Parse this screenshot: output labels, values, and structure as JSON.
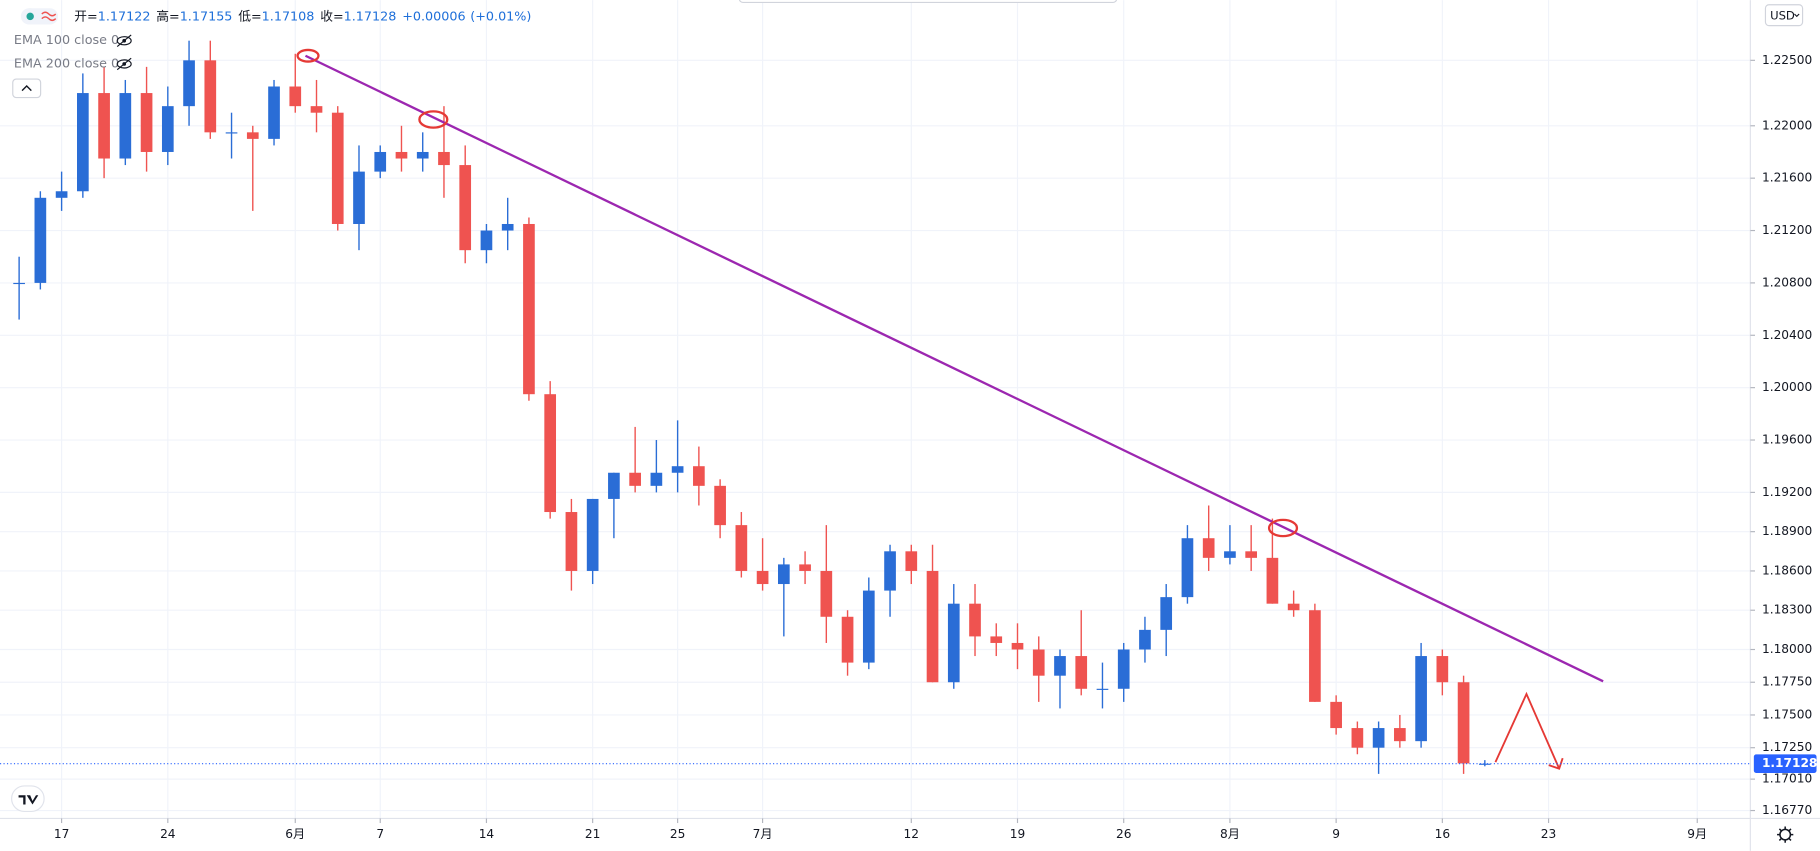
{
  "chart_data": {
    "type": "candlestick",
    "header": {
      "labels": [
        "开=",
        "高=",
        "低=",
        "收="
      ],
      "change": "+0.00006",
      "change_pct": "(+0.01%)"
    },
    "indicators": [
      "EMA 100 close 0",
      "EMA 200 close 0"
    ],
    "currency": "USD",
    "up_color": "#2a6dd6",
    "down_color": "#ef5350",
    "grid": true,
    "xlim": [
      -2.9,
      79.5
    ],
    "ylim": [
      1.1671,
      1.2296
    ],
    "xticks": [
      {
        "value": 0,
        "label": "17"
      },
      {
        "value": 5,
        "label": "24"
      },
      {
        "value": 11,
        "label": "6月"
      },
      {
        "value": 15,
        "label": "7"
      },
      {
        "value": 20,
        "label": "14"
      },
      {
        "value": 25,
        "label": "21"
      },
      {
        "value": 29,
        "label": "25"
      },
      {
        "value": 33,
        "label": "7月"
      },
      {
        "value": 40,
        "label": "12"
      },
      {
        "value": 45,
        "label": "19"
      },
      {
        "value": 50,
        "label": "26"
      },
      {
        "value": 55,
        "label": "8月"
      },
      {
        "value": 60,
        "label": "9"
      },
      {
        "value": 65,
        "label": "16"
      },
      {
        "value": 70,
        "label": "23"
      },
      {
        "value": 77,
        "label": "9月"
      }
    ],
    "yticks": [
      {
        "value": 1.225,
        "label": "1.22500"
      },
      {
        "value": 1.22,
        "label": "1.22000"
      },
      {
        "value": 1.216,
        "label": "1.21600"
      },
      {
        "value": 1.212,
        "label": "1.21200"
      },
      {
        "value": 1.208,
        "label": "1.20800"
      },
      {
        "value": 1.204,
        "label": "1.20400"
      },
      {
        "value": 1.2,
        "label": "1.20000"
      },
      {
        "value": 1.196,
        "label": "1.19600"
      },
      {
        "value": 1.192,
        "label": "1.19200"
      },
      {
        "value": 1.189,
        "label": "1.18900"
      },
      {
        "value": 1.186,
        "label": "1.18600"
      },
      {
        "value": 1.183,
        "label": "1.18300"
      },
      {
        "value": 1.18,
        "label": "1.18000"
      },
      {
        "value": 1.1775,
        "label": "1.17750"
      },
      {
        "value": 1.175,
        "label": "1.17500"
      },
      {
        "value": 1.1725,
        "label": "1.17250"
      },
      {
        "value": 1.1701,
        "label": "1.17010"
      },
      {
        "value": 1.1677,
        "label": "1.16770"
      }
    ],
    "candles": {
      "x": [
        -2,
        -1,
        0,
        1,
        2,
        3,
        4,
        5,
        6,
        7,
        8,
        9,
        10,
        11,
        12,
        13,
        14,
        15,
        16,
        17,
        18,
        19,
        20,
        21,
        22,
        23,
        24,
        25,
        26,
        27,
        28,
        29,
        30,
        31,
        32,
        33,
        34,
        35,
        36,
        37,
        38,
        39,
        40,
        41,
        42,
        43,
        44,
        45,
        46,
        47,
        48,
        49,
        50,
        51,
        52,
        53,
        54,
        55,
        56,
        57,
        58,
        59,
        60,
        61,
        62,
        63,
        64,
        65,
        66,
        67
      ],
      "open": [
        1.208,
        1.208,
        1.2145,
        1.215,
        1.2225,
        1.2175,
        1.2225,
        1.218,
        1.2215,
        1.225,
        1.2195,
        1.2195,
        1.219,
        1.223,
        1.2215,
        1.221,
        1.2125,
        1.2165,
        1.218,
        1.2175,
        1.218,
        1.217,
        1.2105,
        1.212,
        1.2125,
        1.1995,
        1.1905,
        1.186,
        1.1915,
        1.1935,
        1.1925,
        1.1935,
        1.194,
        1.1925,
        1.1895,
        1.186,
        1.185,
        1.1865,
        1.186,
        1.1825,
        1.179,
        1.1845,
        1.1875,
        1.186,
        1.1775,
        1.1835,
        1.181,
        1.1805,
        1.18,
        1.178,
        1.1795,
        1.177,
        1.177,
        1.18,
        1.1815,
        1.184,
        1.1885,
        1.187,
        1.1875,
        1.187,
        1.1835,
        1.183,
        1.176,
        1.174,
        1.1725,
        1.174,
        1.173,
        1.1795,
        1.1775,
        1.17122
      ],
      "high": [
        1.21,
        1.215,
        1.2165,
        1.224,
        1.2245,
        1.2235,
        1.2245,
        1.223,
        1.2265,
        1.2265,
        1.221,
        1.22,
        1.2235,
        1.2255,
        1.2235,
        1.2215,
        1.2185,
        1.2185,
        1.22,
        1.2195,
        1.2215,
        1.2185,
        1.2125,
        1.2145,
        1.213,
        1.2005,
        1.1915,
        1.1915,
        1.1935,
        1.197,
        1.196,
        1.1975,
        1.1955,
        1.193,
        1.1905,
        1.1885,
        1.187,
        1.1875,
        1.1895,
        1.183,
        1.1855,
        1.188,
        1.188,
        1.188,
        1.185,
        1.185,
        1.182,
        1.182,
        1.181,
        1.18,
        1.183,
        1.179,
        1.1805,
        1.1825,
        1.185,
        1.1895,
        1.191,
        1.1895,
        1.1895,
        1.19,
        1.1845,
        1.1835,
        1.1765,
        1.1745,
        1.1745,
        1.175,
        1.1805,
        1.18,
        1.178,
        1.17155
      ],
      "low": [
        1.2052,
        1.2075,
        1.2135,
        1.2145,
        1.216,
        1.217,
        1.2165,
        1.217,
        1.22,
        1.219,
        1.2175,
        1.2135,
        1.2185,
        1.221,
        1.2195,
        1.212,
        1.2105,
        1.216,
        1.2165,
        1.2165,
        1.2145,
        1.2095,
        1.2095,
        1.2105,
        1.199,
        1.19,
        1.1845,
        1.185,
        1.1885,
        1.192,
        1.192,
        1.192,
        1.191,
        1.1885,
        1.1855,
        1.1845,
        1.181,
        1.185,
        1.1805,
        1.178,
        1.1785,
        1.1825,
        1.185,
        1.1775,
        1.177,
        1.1795,
        1.1795,
        1.1785,
        1.176,
        1.1755,
        1.1765,
        1.1755,
        1.176,
        1.179,
        1.1795,
        1.1835,
        1.186,
        1.1865,
        1.186,
        1.1835,
        1.1825,
        1.176,
        1.1735,
        1.172,
        1.1705,
        1.1725,
        1.1725,
        1.1765,
        1.1705,
        1.17108
      ],
      "close": [
        1.208,
        1.2145,
        1.215,
        1.2225,
        1.2175,
        1.2225,
        1.218,
        1.2215,
        1.225,
        1.2195,
        1.2195,
        1.219,
        1.223,
        1.2215,
        1.221,
        1.2125,
        1.2165,
        1.218,
        1.2175,
        1.218,
        1.217,
        1.2105,
        1.212,
        1.2125,
        1.1995,
        1.1905,
        1.186,
        1.1915,
        1.1935,
        1.1925,
        1.1935,
        1.194,
        1.1925,
        1.1895,
        1.186,
        1.185,
        1.1865,
        1.186,
        1.1825,
        1.179,
        1.1845,
        1.1875,
        1.186,
        1.1775,
        1.1835,
        1.181,
        1.1805,
        1.18,
        1.178,
        1.1795,
        1.177,
        1.177,
        1.18,
        1.1815,
        1.184,
        1.1885,
        1.187,
        1.1875,
        1.187,
        1.1835,
        1.183,
        1.176,
        1.174,
        1.1725,
        1.174,
        1.173,
        1.1795,
        1.1775,
        1.1713,
        1.17128
      ]
    },
    "trendline": {
      "x": [
        11.48,
        72.57
      ],
      "y": [
        1.22535,
        1.17757
      ],
      "color": "#9c27b0"
    },
    "touches": {
      "x": [
        11.6,
        17.5,
        57.5
      ],
      "y": [
        1.22535,
        1.22048,
        1.18928
      ],
      "color": "#e53935"
    },
    "projection": {
      "x": [
        67.5,
        68.96,
        70.5
      ],
      "y": [
        1.1714,
        1.1766,
        1.1709
      ],
      "color": "#e53935"
    }
  }
}
